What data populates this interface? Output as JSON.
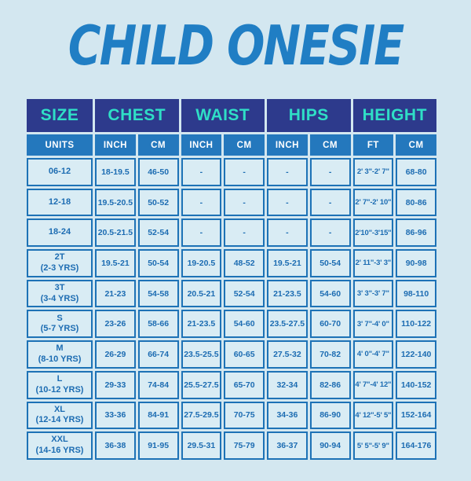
{
  "title": "CHILD ONESIE",
  "colors": {
    "bg": "#d3e7f0",
    "navy": "#2d3a8c",
    "teal": "#2fdfc6",
    "blue": "#2478bd",
    "border": "#1d72b6",
    "text-blue": "#1c6cb2",
    "title-blue": "#207ec4",
    "cell-bg": "#d9ecf4"
  },
  "table": {
    "headers": [
      "SIZE",
      "CHEST",
      "WAIST",
      "HIPS",
      "HEIGHT"
    ],
    "units": [
      "UNITS",
      "INCH",
      "CM",
      "INCH",
      "CM",
      "INCH",
      "CM",
      "FT",
      "CM"
    ],
    "rows": [
      {
        "size": "06-12",
        "size_sub": "",
        "cells": [
          "18-19.5",
          "46-50",
          "-",
          "-",
          "-",
          "-",
          "2' 3\"-2' 7\"",
          "68-80"
        ]
      },
      {
        "size": "12-18",
        "size_sub": "",
        "cells": [
          "19.5-20.5",
          "50-52",
          "-",
          "-",
          "-",
          "-",
          "2' 7\"-2' 10\"",
          "80-86"
        ]
      },
      {
        "size": "18-24",
        "size_sub": "",
        "cells": [
          "20.5-21.5",
          "52-54",
          "-",
          "-",
          "-",
          "-",
          "2'10\"-3'15\"",
          "86-96"
        ]
      },
      {
        "size": "2T",
        "size_sub": "(2-3 YRS)",
        "cells": [
          "19.5-21",
          "50-54",
          "19-20.5",
          "48-52",
          "19.5-21",
          "50-54",
          "2' 11\"-3' 3\"",
          "90-98"
        ]
      },
      {
        "size": "3T",
        "size_sub": "(3-4 YRS)",
        "cells": [
          "21-23",
          "54-58",
          "20.5-21",
          "52-54",
          "21-23.5",
          "54-60",
          "3' 3\"-3' 7\"",
          "98-110"
        ]
      },
      {
        "size": "S",
        "size_sub": "(5-7 YRS)",
        "cells": [
          "23-26",
          "58-66",
          "21-23.5",
          "54-60",
          "23.5-27.5",
          "60-70",
          "3' 7\"-4' 0\"",
          "110-122"
        ]
      },
      {
        "size": "M",
        "size_sub": "(8-10 YRS)",
        "cells": [
          "26-29",
          "66-74",
          "23.5-25.5",
          "60-65",
          "27.5-32",
          "70-82",
          "4' 0\"-4' 7\"",
          "122-140"
        ]
      },
      {
        "size": "L",
        "size_sub": "(10-12 YRS)",
        "cells": [
          "29-33",
          "74-84",
          "25.5-27.5",
          "65-70",
          "32-34",
          "82-86",
          "4' 7\"-4' 12\"",
          "140-152"
        ]
      },
      {
        "size": "XL",
        "size_sub": "(12-14 YRS)",
        "cells": [
          "33-36",
          "84-91",
          "27.5-29.5",
          "70-75",
          "34-36",
          "86-90",
          "4' 12\"-5' 5\"",
          "152-164"
        ]
      },
      {
        "size": "XXL",
        "size_sub": "(14-16 YRS)",
        "cells": [
          "36-38",
          "91-95",
          "29.5-31",
          "75-79",
          "36-37",
          "90-94",
          "5' 5\"-5' 9\"",
          "164-176"
        ]
      }
    ]
  }
}
